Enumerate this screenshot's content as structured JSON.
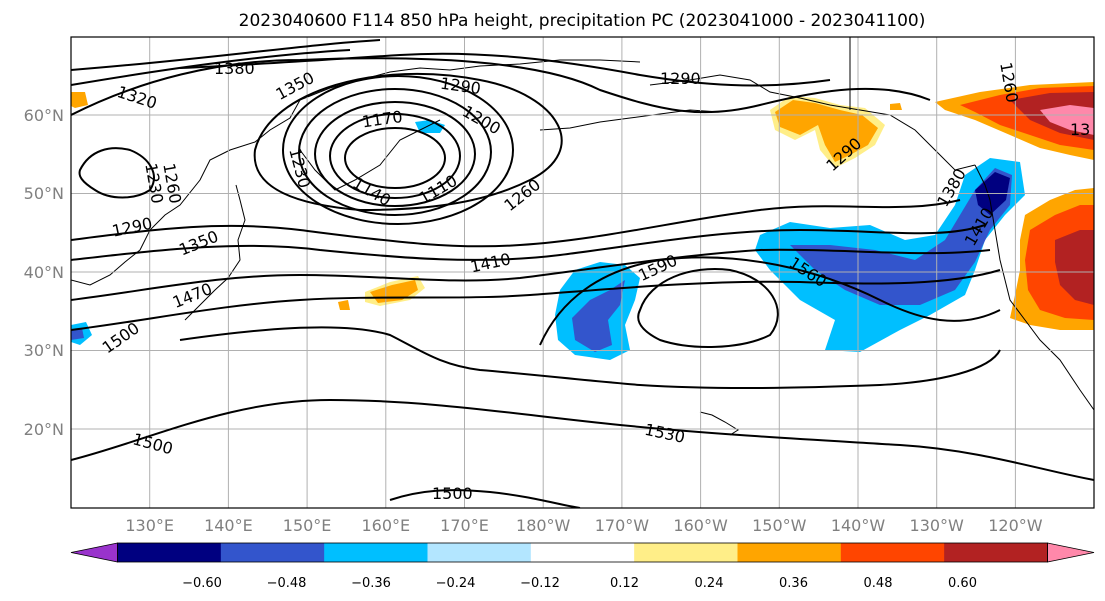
{
  "title": "2023040600 F114 850 hPa height, precipitation PC (2023041000 - 2023041100)",
  "map": {
    "lon_ticks": [
      "130°E",
      "140°E",
      "150°E",
      "160°E",
      "170°E",
      "180°W",
      "170°W",
      "160°W",
      "150°W",
      "140°W",
      "130°W",
      "120°W"
    ],
    "lat_ticks": [
      "60°N",
      "50°N",
      "40°N",
      "30°N",
      "20°N"
    ],
    "contour_labels": [
      "1380",
      "1350",
      "1320",
      "1290",
      "1260",
      "1230",
      "1290",
      "1350",
      "1470",
      "1500",
      "1170",
      "1230",
      "1200",
      "1140",
      "1110",
      "1260",
      "1410",
      "1290",
      "1590",
      "1560",
      "1290",
      "1260",
      "1380",
      "1410",
      "1500",
      "1530",
      "1500",
      "13"
    ]
  },
  "colorbar": {
    "ticks": [
      "−0.60",
      "−0.48",
      "−0.36",
      "−0.24",
      "−0.12",
      "0.12",
      "0.24",
      "0.36",
      "0.48",
      "0.60"
    ],
    "colors": [
      "#9933cc",
      "#000080",
      "#3355cc",
      "#00bfff",
      "#b3e6ff",
      "#ffffff",
      "#ffee88",
      "#ffa500",
      "#ff4500",
      "#b22222",
      "#ff88aa"
    ]
  }
}
